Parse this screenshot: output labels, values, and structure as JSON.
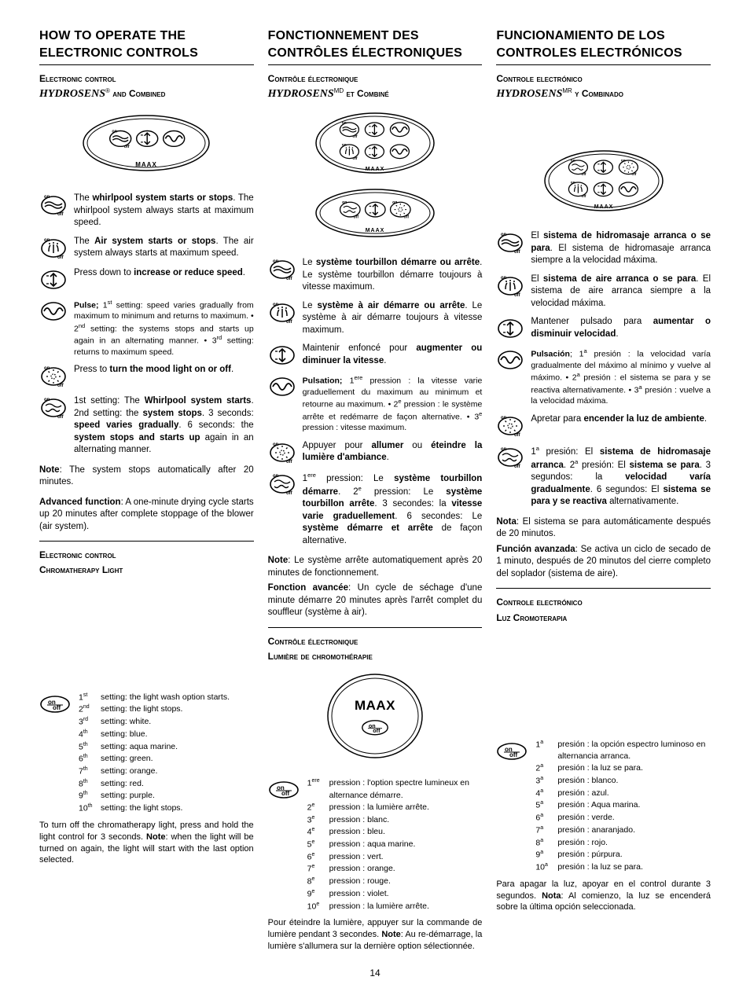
{
  "page_number": "14",
  "cols": {
    "en": {
      "title": "HOW TO OPERATE THE ELECTRONIC CONTROLS",
      "sub_sc1": "Electronic control",
      "sub_brand": "HYDROSENS",
      "sub_reg": "®",
      "sub_sc2": " and Combined",
      "icons": {
        "whirlpool_a": "The ",
        "whirlpool_b": "whirlpool system starts or stops",
        "whirlpool_c": ". The whirlpool system always starts at maximum speed.",
        "air_a": "The ",
        "air_b": "Air system starts or stops",
        "air_c": ". The air system always starts at maximum speed.",
        "speed_a": "Press down to ",
        "speed_b": "increase or reduce speed",
        "speed_c": ".",
        "pulse_a": "Pulse;",
        "pulse_b": " 1",
        "pulse_b_sup": "st",
        "pulse_c": " setting: speed varies gradually from maximum to minimum and returns to maximum. • 2",
        "pulse_c_sup": "nd",
        "pulse_d": " setting: the systems stops and starts up again in an alternating manner. • 3",
        "pulse_d_sup": "rd",
        "pulse_e": " setting: returns to maximum speed.",
        "light_a": "Press to ",
        "light_b": "turn the mood light on or off",
        "light_c": ".",
        "combo_a": "1st setting: The ",
        "combo_b": "Whirlpool system starts",
        "combo_c": ". 2nd setting: the ",
        "combo_d": "system stops",
        "combo_e": ". 3 seconds: ",
        "combo_f": "speed varies gradually",
        "combo_g": ". 6 seconds: the ",
        "combo_h": "system stops and starts up",
        "combo_i": " again in an alternating manner."
      },
      "note1_a": "Note",
      "note1_b": ": The system stops automatically after 20 minutes.",
      "note2_a": "Advanced function",
      "note2_b": ": A one-minute drying cycle starts up 20 minutes after complete stoppage of the blower (air system).",
      "chroma_h1": "Electronic control",
      "chroma_h2": "Chromatherapy Light",
      "settings": [
        {
          "o": "1",
          "s": "st",
          "t": "setting: the light wash option starts."
        },
        {
          "o": "2",
          "s": "nd",
          "t": "setting: the light stops."
        },
        {
          "o": "3",
          "s": "rd",
          "t": "setting: white."
        },
        {
          "o": "4",
          "s": "th",
          "t": "setting: blue."
        },
        {
          "o": "5",
          "s": "th",
          "t": "setting: aqua marine."
        },
        {
          "o": "6",
          "s": "th",
          "t": "setting: green."
        },
        {
          "o": "7",
          "s": "th",
          "t": "setting: orange."
        },
        {
          "o": "8",
          "s": "th",
          "t": "setting: red."
        },
        {
          "o": "9",
          "s": "th",
          "t": "setting: purple."
        },
        {
          "o": "10",
          "s": "th",
          "t": "setting: the light stops."
        }
      ],
      "closing_a": "To turn off the chromatherapy light, press and hold the light control for 3 seconds. ",
      "closing_b": "Note",
      "closing_c": ": when the light will be turned on again, the light will start with the last option selected."
    },
    "fr": {
      "title": "FONCTIONNEMENT DES CONTRÔLES ÉLECTRONIQUES",
      "sub_sc1": "Contrôle électronique",
      "sub_brand": "HYDROSENS",
      "sub_reg": "MD",
      "sub_sc2": " et Combiné",
      "icons": {
        "whirlpool_a": "Le ",
        "whirlpool_b": "système tourbillon démarre ou arrête",
        "whirlpool_c": ". Le système tourbillon démarre toujours à vitesse maximum.",
        "air_a": "Le ",
        "air_b": "système à air démarre ou arrête",
        "air_c": ". Le système à air démarre toujours à vitesse maximum.",
        "speed_a": "Maintenir enfoncé pour ",
        "speed_b": "augmenter ou diminuer la vitesse",
        "speed_c": ".",
        "pulse_a": "Pulsation;",
        "pulse_b": " 1",
        "pulse_b_sup": "ere",
        "pulse_c": " pression : la vitesse varie graduellement du maximum au minimum et retourne au maximum. • 2",
        "pulse_c_sup": "e",
        "pulse_d": " pression : le système arrête et redémarre de façon alternative. • 3",
        "pulse_d_sup": "e",
        "pulse_e": " pression : vitesse maximum.",
        "light_a": "Appuyer pour ",
        "light_b": "allumer",
        "light_b2": " ou ",
        "light_b3": "éteindre la lumière d'ambiance",
        "light_c": ".",
        "combo_a": "1",
        "combo_a_sup": "ere",
        "combo_a2": " pression: Le ",
        "combo_b": "système tourbillon démarre",
        "combo_c": ". 2",
        "combo_c_sup": "e",
        "combo_c2": " pression: Le ",
        "combo_d": "système tourbillon arrête",
        "combo_e": ". 3 secondes: la ",
        "combo_f": "vitesse varie graduellement",
        "combo_g": ". 6 secondes: Le ",
        "combo_h": "système démarre et arrête",
        "combo_i": " de façon alternative."
      },
      "note1_a": "Note",
      "note1_b": ": Le système arrête automatiquement après 20 minutes de fonctionnement.",
      "note2_a": "Fonction avancée",
      "note2_b": ": Un cycle de séchage d'une minute démarre 20 minutes après l'arrêt complet du souffleur (système à air).",
      "chroma_h1": "Contrôle électronique",
      "chroma_h2": "Lumière de chromothérapie",
      "settings": [
        {
          "o": "1",
          "s": "ere",
          "t": "pression : l'option spectre lumineux en alternance démarre."
        },
        {
          "o": "2",
          "s": "e",
          "t": "pression : la lumière arrête."
        },
        {
          "o": "3",
          "s": "e",
          "t": "pression : blanc."
        },
        {
          "o": "4",
          "s": "e",
          "t": "pression : bleu."
        },
        {
          "o": "5",
          "s": "e",
          "t": "pression : aqua marine."
        },
        {
          "o": "6",
          "s": "e",
          "t": "pression : vert."
        },
        {
          "o": "7",
          "s": "e",
          "t": "pression : orange."
        },
        {
          "o": "8",
          "s": "e",
          "t": "pression : rouge."
        },
        {
          "o": "9",
          "s": "e",
          "t": "pression : violet."
        },
        {
          "o": "10",
          "s": "e",
          "t": "pression : la lumière arrête."
        }
      ],
      "closing_a": "Pour éteindre la lumière, appuyer sur la commande de lumière pendant 3 secondes. ",
      "closing_b": "Note",
      "closing_c": ": Au re-démarrage, la lumière s'allumera sur la dernière option sélectionnée."
    },
    "es": {
      "title": "FUNCIONAMIENTO DE LOS CONTROLES ELECTRÓNICOS",
      "sub_sc1": "Controle electrónico",
      "sub_brand": "HYDROSENS",
      "sub_reg": "MR",
      "sub_sc2": " y Combinado",
      "icons": {
        "whirlpool_a": "El ",
        "whirlpool_b": "sistema de hidromasaje arranca o se para",
        "whirlpool_c": ". El sistema de hidromasaje arranca siempre a la velocidad máxima.",
        "air_a": "El ",
        "air_b": "sistema de aire arranca o se para",
        "air_c": ". El sistema de aire arranca siempre a la velocidad máxima.",
        "speed_a": "Mantener pulsado para ",
        "speed_b": "aumentar o disminuir velocidad",
        "speed_c": ".",
        "pulse_a": "Pulsación",
        "pulse_b": "; 1",
        "pulse_b_sup": "a",
        "pulse_c": " presión : la velocidad varía gradualmente del máximo al mínimo y vuelve al máximo. • 2",
        "pulse_c_sup": "a",
        "pulse_d": " presión : el sistema se para y se reactiva alternativamente. • 3",
        "pulse_d_sup": "a",
        "pulse_e": " presión : vuelve a la velocidad máxima.",
        "light_a": "Apretar para ",
        "light_b": "encender la luz de ambiente",
        "light_c": ".",
        "combo_a": "1",
        "combo_a_sup": "a",
        "combo_a2": " presión: El ",
        "combo_b": "sistema de hidromasaje arranca",
        "combo_c": ". 2",
        "combo_c_sup": "a",
        "combo_c2": " presión: El ",
        "combo_d": "sistema se para",
        "combo_e": ". 3 segundos: la ",
        "combo_f": "velocidad varía gradualmente",
        "combo_g": ". 6 segundos: El ",
        "combo_h": "sistema se para y se reactiva",
        "combo_i": " alternativamente."
      },
      "note1_a": "Nota",
      "note1_b": ": El sistema se para automáticamente después de 20 minutos.",
      "note2_a": "Función avanzada",
      "note2_b": ": Se activa un ciclo de secado de 1 minuto, después de 20 minutos del cierre completo del soplador (sistema de aire).",
      "chroma_h1": "Controle electrónico",
      "chroma_h2": "Luz Cromoterapia",
      "settings": [
        {
          "o": "1",
          "s": "a",
          "t": "presión : la opción espectro luminoso en alternancia arranca."
        },
        {
          "o": "2",
          "s": "a",
          "t": "presión : la luz se para."
        },
        {
          "o": "3",
          "s": "a",
          "t": "presión : blanco."
        },
        {
          "o": "4",
          "s": "a",
          "t": "presión : azul."
        },
        {
          "o": "5",
          "s": "a",
          "t": "presión : Aqua marina."
        },
        {
          "o": "6",
          "s": "a",
          "t": "presión : verde."
        },
        {
          "o": "7",
          "s": "a",
          "t": "presión : anaranjado."
        },
        {
          "o": "8",
          "s": "a",
          "t": "presión : rojo."
        },
        {
          "o": "9",
          "s": "a",
          "t": "presión : púrpura."
        },
        {
          "o": "10",
          "s": "a",
          "t": "presión : la luz se para."
        }
      ],
      "closing_a": "Para apagar la luz, apoyar en el control durante 3 segundos. ",
      "closing_b": "Nota",
      "closing_c": ": Al comienzo, la luz se encenderá sobre la última opción seleccionada."
    }
  },
  "brand_label": "MAAX",
  "onoff_on": "on",
  "onoff_off": "off"
}
